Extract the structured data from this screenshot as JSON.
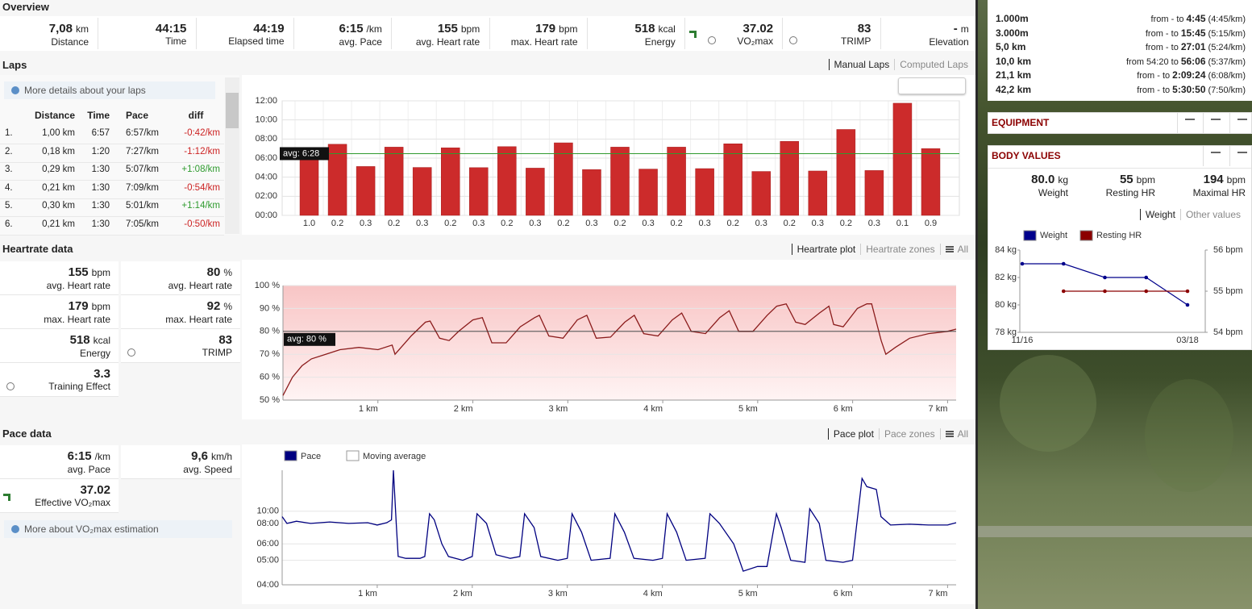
{
  "overview": {
    "title": "Overview",
    "items": [
      {
        "value": "7,08",
        "unit": "km",
        "label": "Distance"
      },
      {
        "value": "44:15",
        "label": "Time"
      },
      {
        "value": "44:19",
        "label": "Elapsed time"
      },
      {
        "value": "6:15",
        "unit": "/km",
        "label": "avg. Pace"
      },
      {
        "value": "155",
        "unit": "bpm",
        "label": "avg. Heart rate"
      },
      {
        "value": "179",
        "unit": "bpm",
        "label": "max. Heart rate"
      },
      {
        "value": "518",
        "unit": "kcal",
        "label": "Energy"
      },
      {
        "value": "37.02",
        "label": "VO₂max"
      },
      {
        "value": "83",
        "label": "TRIMP"
      },
      {
        "value": "-",
        "unit": "m",
        "label": "Elevation"
      }
    ]
  },
  "laps": {
    "title": "Laps",
    "tabs": [
      "Manual Laps",
      "Computed Laps"
    ],
    "info": "More details about your laps",
    "columns": [
      "Distance",
      "Time",
      "Pace",
      "diff"
    ],
    "rows": [
      [
        "1.",
        "1,00 km",
        "6:57",
        "6:57/km",
        "-0:42/km"
      ],
      [
        "2.",
        "0,18 km",
        "1:20",
        "7:27/km",
        "-1:12/km"
      ],
      [
        "3.",
        "0,29 km",
        "1:30",
        "5:07/km",
        "+1:08/km"
      ],
      [
        "4.",
        "0,21 km",
        "1:30",
        "7:09/km",
        "-0:54/km"
      ],
      [
        "5.",
        "0,30 km",
        "1:30",
        "5:01/km",
        "+1:14/km"
      ],
      [
        "6.",
        "0,21 km",
        "1:30",
        "7:05/km",
        "-0:50/km"
      ]
    ],
    "chart": {
      "type": "bar",
      "color": "#cc2b2b",
      "categories": [
        "1.0",
        "0.2",
        "0.3",
        "0.2",
        "0.3",
        "0.2",
        "0.3",
        "0.2",
        "0.3",
        "0.2",
        "0.3",
        "0.2",
        "0.3",
        "0.2",
        "0.3",
        "0.2",
        "0.3",
        "0.2",
        "0.3",
        "0.2",
        "0.3",
        "0.1",
        "0.9"
      ],
      "values": [
        6.95,
        7.45,
        5.12,
        7.15,
        5.02,
        7.08,
        5.0,
        7.2,
        4.95,
        7.6,
        4.8,
        7.15,
        4.85,
        7.15,
        4.9,
        7.5,
        4.6,
        7.75,
        4.65,
        9.0,
        4.7,
        11.75,
        7.0
      ],
      "ylim": [
        0,
        12
      ],
      "yticks": [
        {
          "value": 0,
          "label": "00:00"
        },
        {
          "value": 2,
          "label": "02:00"
        },
        {
          "value": 4,
          "label": "04:00"
        },
        {
          "value": 6,
          "label": "06:00"
        },
        {
          "value": 8,
          "label": "08:00"
        },
        {
          "value": 10,
          "label": "10:00"
        },
        {
          "value": 12,
          "label": "12:00"
        }
      ],
      "avg": 6.4667,
      "avg_label": "avg: 6:28",
      "avg_color": "#2e9a2e",
      "grid": true
    }
  },
  "heartrate": {
    "title": "Heartrate data",
    "tabs": [
      "Heartrate plot",
      "Heartrate zones",
      "All"
    ],
    "stats": [
      {
        "value": "155",
        "unit": "bpm",
        "label": "avg. Heart rate"
      },
      {
        "value": "80",
        "unit": "%",
        "label": "avg. Heart rate"
      },
      {
        "value": "179",
        "unit": "bpm",
        "label": "max. Heart rate"
      },
      {
        "value": "92",
        "unit": "%",
        "label": "max. Heart rate"
      },
      {
        "value": "518",
        "unit": "kcal",
        "label": "Energy"
      },
      {
        "value": "83",
        "label": "TRIMP"
      },
      {
        "value": "3.3",
        "label": "Training Effect"
      }
    ],
    "chart": {
      "type": "line",
      "color": "#8b1c1c",
      "x": [
        0,
        0.1,
        0.2,
        0.3,
        0.45,
        0.6,
        0.8,
        1.0,
        1.15,
        1.18,
        1.35,
        1.5,
        1.55,
        1.65,
        1.75,
        1.85,
        2.0,
        2.1,
        2.2,
        2.35,
        2.5,
        2.65,
        2.7,
        2.8,
        2.95,
        3.1,
        3.2,
        3.3,
        3.45,
        3.6,
        3.7,
        3.8,
        3.95,
        4.1,
        4.2,
        4.3,
        4.45,
        4.6,
        4.7,
        4.8,
        4.95,
        5.1,
        5.2,
        5.3,
        5.4,
        5.5,
        5.65,
        5.75,
        5.8,
        5.9,
        6.05,
        6.15,
        6.2,
        6.3,
        6.35,
        6.45,
        6.6,
        6.8,
        7.0,
        7.09
      ],
      "values": [
        52,
        60,
        65,
        68,
        70,
        72,
        73,
        72,
        74,
        70,
        78,
        84,
        84.5,
        77,
        76,
        80,
        85,
        86,
        75,
        75,
        82,
        86,
        87,
        78,
        77,
        85,
        87,
        77,
        77.5,
        84,
        87,
        79,
        78,
        85,
        88,
        80,
        79,
        86,
        89,
        80,
        80,
        87,
        91,
        92,
        84,
        83,
        88,
        91,
        83,
        82,
        90,
        92,
        92,
        76,
        70,
        73,
        77,
        79,
        80,
        81
      ],
      "xlim": [
        0,
        7.09
      ],
      "xticks": [
        {
          "value": 1,
          "label": "1 km"
        },
        {
          "value": 2,
          "label": "2 km"
        },
        {
          "value": 3,
          "label": "3 km"
        },
        {
          "value": 4,
          "label": "4 km"
        },
        {
          "value": 5,
          "label": "5 km"
        },
        {
          "value": 6,
          "label": "6 km"
        },
        {
          "value": 7,
          "label": "7 km"
        }
      ],
      "ylim": [
        50,
        100
      ],
      "yticks": [
        {
          "value": 50,
          "label": "50 %"
        },
        {
          "value": 60,
          "label": "60 %"
        },
        {
          "value": 70,
          "label": "70 %"
        },
        {
          "value": 80,
          "label": "80 %"
        },
        {
          "value": 90,
          "label": "90 %"
        },
        {
          "value": 100,
          "label": "100 %"
        }
      ],
      "avg": 80,
      "avg_label": "avg: 80 %",
      "grid": true
    }
  },
  "pace": {
    "title": "Pace data",
    "tabs": [
      "Pace plot",
      "Pace zones",
      "All"
    ],
    "stats": [
      {
        "value": "6:15",
        "unit": "/km",
        "label": "avg. Pace"
      },
      {
        "value": "9,6",
        "unit": "km/h",
        "label": "avg. Speed"
      },
      {
        "value": "37.02",
        "label": "Effective VO₂max"
      }
    ],
    "info": "More about VO₂max estimation",
    "chart": {
      "type": "line",
      "scale": "inverse",
      "series": [
        {
          "name": "Pace",
          "color": "#000080",
          "x": [
            0,
            0.05,
            0.15,
            0.3,
            0.5,
            0.7,
            0.9,
            1.0,
            1.1,
            1.15,
            1.17,
            1.2,
            1.22,
            1.3,
            1.45,
            1.5,
            1.55,
            1.6,
            1.68,
            1.75,
            1.9,
            2.0,
            2.05,
            2.15,
            2.25,
            2.4,
            2.5,
            2.55,
            2.65,
            2.72,
            2.9,
            3.0,
            3.05,
            3.15,
            3.25,
            3.45,
            3.5,
            3.6,
            3.7,
            3.9,
            4.0,
            4.05,
            4.15,
            4.25,
            4.45,
            4.5,
            4.6,
            4.75,
            4.85,
            5.0,
            5.1,
            5.2,
            5.25,
            5.35,
            5.5,
            5.55,
            5.65,
            5.72,
            5.9,
            6.0,
            6.1,
            6.15,
            6.25,
            6.3,
            6.4,
            6.6,
            6.8,
            7.0,
            7.09
          ],
          "values": [
            9,
            8,
            8.3,
            8,
            8.2,
            8,
            8.1,
            7.8,
            8.1,
            8.5,
            60,
            8,
            5.2,
            5.1,
            5.1,
            5.2,
            9.5,
            8.5,
            6,
            5.2,
            5,
            5.2,
            9.5,
            8,
            5.3,
            5.1,
            5.2,
            9.5,
            7.5,
            5.2,
            5,
            5.1,
            9.5,
            7,
            5,
            5.1,
            9.5,
            7,
            5.1,
            5,
            5.1,
            9.5,
            7,
            5,
            5.1,
            9.5,
            8,
            6,
            4.5,
            4.7,
            4.7,
            9.5,
            7.5,
            5,
            4.9,
            10.5,
            8,
            5,
            4.9,
            5,
            30,
            20,
            18,
            9,
            7.8,
            7.9,
            7.8,
            7.8,
            8.1
          ]
        },
        {
          "name": "Moving average",
          "color": "#ffffff"
        }
      ],
      "xlim": [
        0,
        7.09
      ],
      "xticks": [
        {
          "value": 1,
          "label": "1 km"
        },
        {
          "value": 2,
          "label": "2 km"
        },
        {
          "value": 3,
          "label": "3 km"
        },
        {
          "value": 4,
          "label": "4 km"
        },
        {
          "value": 5,
          "label": "5 km"
        },
        {
          "value": 6,
          "label": "6 km"
        },
        {
          "value": 7,
          "label": "7 km"
        }
      ],
      "ylim": [
        4,
        60
      ],
      "yticks": [
        {
          "value": 4,
          "label": "04:00"
        },
        {
          "value": 5,
          "label": "05:00"
        },
        {
          "value": 6,
          "label": "06:00"
        },
        {
          "value": 8,
          "label": "08:00"
        },
        {
          "value": 10,
          "label": "10:00"
        }
      ],
      "grid": true
    }
  },
  "records": [
    {
      "distance": "1.000m",
      "prefix": "from - to",
      "time": "4:45",
      "pace": "(4:45/km)"
    },
    {
      "distance": "3.000m",
      "prefix": "from - to",
      "time": "15:45",
      "pace": "(5:15/km)"
    },
    {
      "distance": "5,0 km",
      "prefix": "from - to",
      "time": "27:01",
      "pace": "(5:24/km)"
    },
    {
      "distance": "10,0 km",
      "prefix": "from 54:20 to",
      "time": "56:06",
      "pace": "(5:37/km)"
    },
    {
      "distance": "21,1 km",
      "prefix": "from - to",
      "time": "2:09:24",
      "pace": "(6:08/km)"
    },
    {
      "distance": "42,2 km",
      "prefix": "from - to",
      "time": "5:30:50",
      "pace": "(7:50/km)"
    }
  ],
  "equipment": {
    "title": "EQUIPMENT"
  },
  "body": {
    "title": "BODY VALUES",
    "stats": [
      {
        "value": "80.0",
        "unit": "kg",
        "label": "Weight"
      },
      {
        "value": "55",
        "unit": "bpm",
        "label": "Resting HR"
      },
      {
        "value": "194",
        "unit": "bpm",
        "label": "Maximal HR"
      }
    ],
    "tabs": [
      "Weight",
      "Other values"
    ],
    "chart": {
      "type": "line",
      "categories": [
        "11/16",
        null,
        null,
        null,
        "03/18"
      ],
      "series": [
        {
          "name": "Weight",
          "color": "#00008b",
          "values": [
            83,
            83,
            82,
            82,
            80
          ]
        },
        {
          "name": "Resting HR",
          "color": "#8b0000",
          "axis": "y2",
          "values": [
            null,
            55,
            55,
            55,
            55
          ]
        }
      ],
      "ylim": [
        78,
        84
      ],
      "yticks": [
        {
          "value": 78,
          "label": "78 kg"
        },
        {
          "value": 80,
          "label": "80 kg"
        },
        {
          "value": 82,
          "label": "82 kg"
        },
        {
          "value": 84,
          "label": "84 kg"
        }
      ],
      "y2lim": [
        54,
        56
      ],
      "y2ticks": [
        {
          "value": 54,
          "label": "54 bpm"
        },
        {
          "value": 55,
          "label": "55 bpm"
        },
        {
          "value": 56,
          "label": "56 bpm"
        }
      ]
    }
  }
}
